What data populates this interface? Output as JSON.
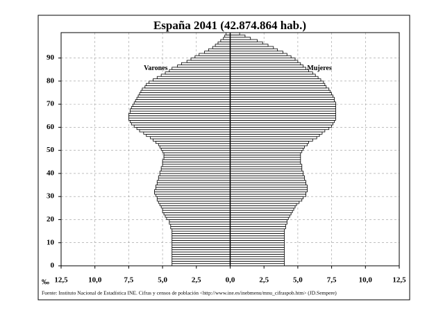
{
  "chart_data": {
    "type": "pyramid",
    "title": "España 2041 (42.874.864 hab.)",
    "x_unit": "‰",
    "source": "Fuente: Instituto Nacional de Estadística INE. Cifras y censos de población <http://www.ine.es/inebmenu/mnu_cifraspob.htm> (JD.Sempere)",
    "y": [
      0,
      1,
      2,
      3,
      4,
      5,
      6,
      7,
      8,
      9,
      10,
      11,
      12,
      13,
      14,
      15,
      16,
      17,
      18,
      19,
      20,
      21,
      22,
      23,
      24,
      25,
      26,
      27,
      28,
      29,
      30,
      31,
      32,
      33,
      34,
      35,
      36,
      37,
      38,
      39,
      40,
      41,
      42,
      43,
      44,
      45,
      46,
      47,
      48,
      49,
      50,
      51,
      52,
      53,
      54,
      55,
      56,
      57,
      58,
      59,
      60,
      61,
      62,
      63,
      64,
      65,
      66,
      67,
      68,
      69,
      70,
      71,
      72,
      73,
      74,
      75,
      76,
      77,
      78,
      79,
      80,
      81,
      82,
      83,
      84,
      85,
      86,
      87,
      88,
      89,
      90,
      91,
      92,
      93,
      94,
      95,
      96,
      97,
      98,
      99,
      100
    ],
    "series": [
      {
        "name": "Varones",
        "side": "left",
        "color": "#ffffff",
        "values": [
          4.3,
          4.3,
          4.3,
          4.3,
          4.3,
          4.3,
          4.3,
          4.3,
          4.3,
          4.3,
          4.3,
          4.3,
          4.3,
          4.3,
          4.3,
          4.3,
          4.4,
          4.4,
          4.5,
          4.5,
          4.7,
          4.8,
          4.9,
          5.0,
          5.0,
          5.1,
          5.2,
          5.3,
          5.4,
          5.4,
          5.5,
          5.6,
          5.6,
          5.5,
          5.5,
          5.4,
          5.4,
          5.3,
          5.3,
          5.2,
          5.2,
          5.1,
          5.1,
          5.0,
          5.0,
          5.0,
          4.9,
          4.9,
          4.9,
          5.0,
          5.1,
          5.2,
          5.3,
          5.5,
          5.7,
          5.9,
          6.2,
          6.4,
          6.7,
          6.9,
          7.1,
          7.3,
          7.4,
          7.5,
          7.5,
          7.5,
          7.4,
          7.4,
          7.3,
          7.2,
          7.1,
          7.0,
          6.9,
          6.8,
          6.7,
          6.6,
          6.5,
          6.3,
          6.2,
          6.0,
          5.7,
          5.4,
          5.1,
          4.8,
          4.5,
          4.3,
          3.9,
          3.6,
          3.2,
          2.9,
          2.6,
          2.3,
          1.9,
          1.6,
          1.3,
          1.1,
          0.9,
          0.7,
          0.5,
          0.4,
          0.3
        ]
      },
      {
        "name": "Mujeres",
        "side": "right",
        "color": "#ffffff",
        "values": [
          4.0,
          4.0,
          4.0,
          4.0,
          4.0,
          4.0,
          4.0,
          4.0,
          4.0,
          4.0,
          4.0,
          4.0,
          4.0,
          4.0,
          4.0,
          4.0,
          4.1,
          4.1,
          4.2,
          4.2,
          4.3,
          4.4,
          4.5,
          4.6,
          4.7,
          4.8,
          4.9,
          5.1,
          5.3,
          5.4,
          5.6,
          5.6,
          5.7,
          5.7,
          5.7,
          5.6,
          5.6,
          5.5,
          5.5,
          5.4,
          5.4,
          5.3,
          5.3,
          5.3,
          5.2,
          5.2,
          5.2,
          5.2,
          5.2,
          5.3,
          5.4,
          5.5,
          5.7,
          5.8,
          6.1,
          6.4,
          6.6,
          6.8,
          7.0,
          7.3,
          7.5,
          7.6,
          7.7,
          7.8,
          7.8,
          7.8,
          7.8,
          7.8,
          7.8,
          7.8,
          7.8,
          7.7,
          7.7,
          7.6,
          7.5,
          7.4,
          7.3,
          7.1,
          7.0,
          6.9,
          6.7,
          6.5,
          6.3,
          6.1,
          5.8,
          5.6,
          5.4,
          5.2,
          5.0,
          4.8,
          4.5,
          4.2,
          3.9,
          3.5,
          3.2,
          2.8,
          2.4,
          2.0,
          1.5,
          1.1,
          0.7
        ]
      }
    ],
    "xlim": [
      -12.5,
      12.5
    ],
    "xticks": [
      {
        "value": -12.5,
        "label": "12,5"
      },
      {
        "value": -10,
        "label": "10,0"
      },
      {
        "value": -7.5,
        "label": "7,5"
      },
      {
        "value": -5,
        "label": "5,0"
      },
      {
        "value": -2.5,
        "label": "2,5"
      },
      {
        "value": 0,
        "label": "0,0"
      },
      {
        "value": 2.5,
        "label": "2,5"
      },
      {
        "value": 5,
        "label": "5,0"
      },
      {
        "value": 7.5,
        "label": "7,5"
      },
      {
        "value": 10,
        "label": "10,0"
      },
      {
        "value": 12.5,
        "label": "12,5"
      }
    ],
    "ylim": [
      0,
      101
    ],
    "yticks": [
      0,
      10,
      20,
      30,
      40,
      50,
      60,
      70,
      80,
      90
    ],
    "grid": true
  }
}
